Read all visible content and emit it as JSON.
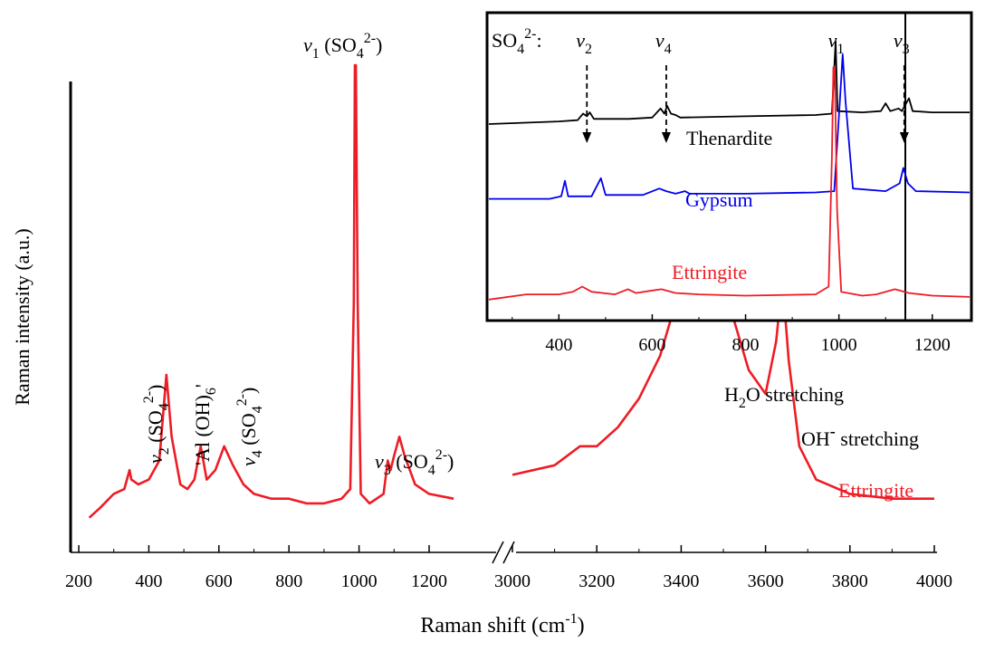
{
  "chart_data": {
    "type": "line",
    "xlabel_main": "Raman shift (cm",
    "xlabel_sup": "-1",
    "xlabel_close": ")",
    "ylabel": "Raman intensity (a.u.)",
    "x_break": true,
    "xticks_left": [
      "200",
      "400",
      "600",
      "800",
      "1000",
      "1200"
    ],
    "xticks_right": [
      "3000",
      "3200",
      "3400",
      "3600",
      "3800",
      "4000"
    ],
    "segments": [
      {
        "name": "Ettringite",
        "color": "#ee1c25",
        "xrange": [
          230,
          1270
        ],
        "points": [
          [
            230,
            0.05
          ],
          [
            260,
            0.07
          ],
          [
            300,
            0.1
          ],
          [
            330,
            0.11
          ],
          [
            345,
            0.15
          ],
          [
            350,
            0.13
          ],
          [
            370,
            0.12
          ],
          [
            400,
            0.13
          ],
          [
            430,
            0.17
          ],
          [
            450,
            0.35
          ],
          [
            465,
            0.22
          ],
          [
            490,
            0.12
          ],
          [
            510,
            0.11
          ],
          [
            530,
            0.13
          ],
          [
            548,
            0.2
          ],
          [
            565,
            0.13
          ],
          [
            590,
            0.15
          ],
          [
            615,
            0.2
          ],
          [
            640,
            0.16
          ],
          [
            670,
            0.12
          ],
          [
            700,
            0.1
          ],
          [
            750,
            0.09
          ],
          [
            800,
            0.09
          ],
          [
            850,
            0.08
          ],
          [
            900,
            0.08
          ],
          [
            950,
            0.09
          ],
          [
            975,
            0.11
          ],
          [
            985,
            0.5
          ],
          [
            988,
            1.0
          ],
          [
            991,
            1.0
          ],
          [
            996,
            0.5
          ],
          [
            1005,
            0.1
          ],
          [
            1030,
            0.08
          ],
          [
            1070,
            0.1
          ],
          [
            1082,
            0.17
          ],
          [
            1090,
            0.15
          ],
          [
            1100,
            0.18
          ],
          [
            1115,
            0.22
          ],
          [
            1130,
            0.18
          ],
          [
            1160,
            0.12
          ],
          [
            1200,
            0.1
          ],
          [
            1270,
            0.09
          ]
        ]
      },
      {
        "name": "Ettringite",
        "color": "#ee1c25",
        "xrange": [
          3000,
          4000
        ],
        "points": [
          [
            3000,
            0.14
          ],
          [
            3100,
            0.16
          ],
          [
            3160,
            0.2
          ],
          [
            3200,
            0.2
          ],
          [
            3250,
            0.24
          ],
          [
            3300,
            0.3
          ],
          [
            3350,
            0.39
          ],
          [
            3400,
            0.54
          ],
          [
            3430,
            0.68
          ],
          [
            3455,
            0.74
          ],
          [
            3480,
            0.65
          ],
          [
            3520,
            0.48
          ],
          [
            3560,
            0.36
          ],
          [
            3600,
            0.31
          ],
          [
            3625,
            0.42
          ],
          [
            3640,
            0.55
          ],
          [
            3655,
            0.38
          ],
          [
            3680,
            0.2
          ],
          [
            3720,
            0.13
          ],
          [
            3800,
            0.1
          ],
          [
            3900,
            0.09
          ],
          [
            4000,
            0.09
          ]
        ]
      }
    ],
    "annotations": {
      "v1_label": "ν",
      "v1_sub": "1",
      "v1_paren": " (SO",
      "v1_sub4": "4",
      "v1_sup": "2-",
      "v1_close": ")",
      "v2_label": "ν",
      "v2_sub": "2",
      "v2_paren": " (SO",
      "v2_sub4": "4",
      "v2_sup": "2-",
      "v2_close": ")",
      "al_label": "'Al (OH)",
      "al_sub": "6",
      "al_close": "'",
      "v4_label": "ν",
      "v4_sub": "4",
      "v4_paren": " (SO",
      "v4_sub4": "4",
      "v4_sup": "2-",
      "v4_close": ")",
      "v3_label": "ν",
      "v3_sub": "3",
      "v3_paren": " (SO",
      "v3_sub4": "4",
      "v3_sup": "2-",
      "v3_close": ")",
      "h2o_pre": "H",
      "h2o_sub": "2",
      "h2o_post": "O stretching",
      "oh_pre": "OH",
      "oh_sup": "-",
      "oh_post": " stretching",
      "ettringite": "Ettringite"
    },
    "inset": {
      "xlim": [
        250,
        1280
      ],
      "xticks": [
        "400",
        "600",
        "800",
        "1000",
        "1200"
      ],
      "header_pre": "SO",
      "header_sub": "4",
      "header_sup": "2-",
      "header_colon": ":",
      "mode_labels": [
        {
          "sym": "ν",
          "sub": "2",
          "x": 460
        },
        {
          "sym": "ν",
          "sub": "4",
          "x": 630
        },
        {
          "sym": "ν",
          "sub": "1",
          "x": 1000
        },
        {
          "sym": "ν",
          "sub": "3",
          "x": 1140
        }
      ],
      "arrows_x": [
        460,
        630,
        1140
      ],
      "series": [
        {
          "name": "Thenardite",
          "color": "#000000",
          "points": [
            [
              250,
              0.73
            ],
            [
              400,
              0.74
            ],
            [
              440,
              0.745
            ],
            [
              452,
              0.77
            ],
            [
              460,
              0.76
            ],
            [
              466,
              0.775
            ],
            [
              475,
              0.75
            ],
            [
              550,
              0.75
            ],
            [
              600,
              0.755
            ],
            [
              618,
              0.79
            ],
            [
              626,
              0.77
            ],
            [
              632,
              0.8
            ],
            [
              640,
              0.77
            ],
            [
              650,
              0.765
            ],
            [
              660,
              0.755
            ],
            [
              800,
              0.76
            ],
            [
              950,
              0.765
            ],
            [
              985,
              0.77
            ],
            [
              993,
              1.05
            ],
            [
              997,
              0.78
            ],
            [
              1050,
              0.775
            ],
            [
              1090,
              0.78
            ],
            [
              1100,
              0.81
            ],
            [
              1110,
              0.78
            ],
            [
              1128,
              0.79
            ],
            [
              1135,
              0.78
            ],
            [
              1150,
              0.83
            ],
            [
              1158,
              0.78
            ],
            [
              1200,
              0.775
            ],
            [
              1280,
              0.775
            ]
          ]
        },
        {
          "name": "Gypsum",
          "color": "#0000ee",
          "points": [
            [
              250,
              0.44
            ],
            [
              380,
              0.44
            ],
            [
              405,
              0.45
            ],
            [
              413,
              0.51
            ],
            [
              420,
              0.45
            ],
            [
              470,
              0.45
            ],
            [
              490,
              0.52
            ],
            [
              500,
              0.455
            ],
            [
              580,
              0.455
            ],
            [
              615,
              0.48
            ],
            [
              630,
              0.47
            ],
            [
              650,
              0.46
            ],
            [
              670,
              0.47
            ],
            [
              680,
              0.46
            ],
            [
              800,
              0.46
            ],
            [
              950,
              0.465
            ],
            [
              990,
              0.47
            ],
            [
              1002,
              0.82
            ],
            [
              1008,
              1.0
            ],
            [
              1014,
              0.82
            ],
            [
              1030,
              0.48
            ],
            [
              1100,
              0.47
            ],
            [
              1130,
              0.5
            ],
            [
              1138,
              0.56
            ],
            [
              1148,
              0.5
            ],
            [
              1165,
              0.47
            ],
            [
              1280,
              0.465
            ]
          ]
        },
        {
          "name": "Ettringite",
          "color": "#ee1c25",
          "points": [
            [
              250,
              0.05
            ],
            [
              330,
              0.07
            ],
            [
              400,
              0.07
            ],
            [
              430,
              0.08
            ],
            [
              450,
              0.1
            ],
            [
              470,
              0.08
            ],
            [
              520,
              0.07
            ],
            [
              548,
              0.09
            ],
            [
              565,
              0.075
            ],
            [
              600,
              0.085
            ],
            [
              620,
              0.09
            ],
            [
              650,
              0.075
            ],
            [
              700,
              0.07
            ],
            [
              800,
              0.065
            ],
            [
              950,
              0.07
            ],
            [
              978,
              0.1
            ],
            [
              985,
              0.6
            ],
            [
              988,
              0.95
            ],
            [
              991,
              0.95
            ],
            [
              996,
              0.4
            ],
            [
              1005,
              0.08
            ],
            [
              1050,
              0.065
            ],
            [
              1080,
              0.07
            ],
            [
              1100,
              0.08
            ],
            [
              1120,
              0.09
            ],
            [
              1150,
              0.075
            ],
            [
              1200,
              0.065
            ],
            [
              1280,
              0.06
            ]
          ]
        }
      ],
      "series_labels": [
        "Thenardite",
        "Gypsum",
        "Ettringite"
      ]
    }
  }
}
